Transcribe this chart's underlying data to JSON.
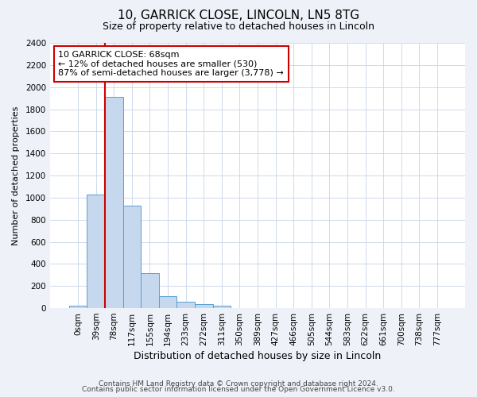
{
  "title1": "10, GARRICK CLOSE, LINCOLN, LN5 8TG",
  "title2": "Size of property relative to detached houses in Lincoln",
  "xlabel": "Distribution of detached houses by size in Lincoln",
  "ylabel": "Number of detached properties",
  "categories": [
    "0sqm",
    "39sqm",
    "78sqm",
    "117sqm",
    "155sqm",
    "194sqm",
    "233sqm",
    "272sqm",
    "311sqm",
    "350sqm",
    "389sqm",
    "427sqm",
    "466sqm",
    "505sqm",
    "544sqm",
    "583sqm",
    "622sqm",
    "661sqm",
    "700sqm",
    "738sqm",
    "777sqm"
  ],
  "bar_values": [
    20,
    1030,
    1910,
    930,
    315,
    105,
    55,
    35,
    25,
    0,
    0,
    0,
    0,
    0,
    0,
    0,
    0,
    0,
    0,
    0,
    0
  ],
  "bar_color": "#c6d8ee",
  "bar_edgecolor": "#5a9fd4",
  "vline_x": 2,
  "vline_color": "#cc0000",
  "annotation_text": "10 GARRICK CLOSE: 68sqm\n← 12% of detached houses are smaller (530)\n87% of semi-detached houses are larger (3,778) →",
  "annotation_box_color": "#cc0000",
  "ylim": [
    0,
    2400
  ],
  "yticks": [
    0,
    200,
    400,
    600,
    800,
    1000,
    1200,
    1400,
    1600,
    1800,
    2000,
    2200,
    2400
  ],
  "footer1": "Contains HM Land Registry data © Crown copyright and database right 2024.",
  "footer2": "Contains public sector information licensed under the Open Government Licence v3.0.",
  "bg_color": "#eef2f8",
  "plot_bg_color": "#ffffff",
  "grid_color": "#c8d4e8",
  "title1_fontsize": 11,
  "title2_fontsize": 9,
  "xlabel_fontsize": 9,
  "ylabel_fontsize": 8,
  "tick_fontsize": 7.5,
  "footer_fontsize": 6.5
}
